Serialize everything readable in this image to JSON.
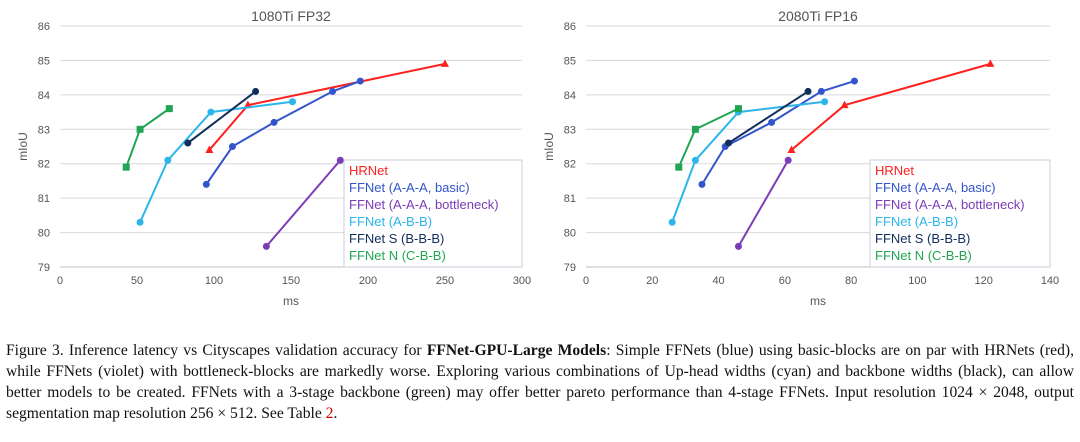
{
  "chart_data": [
    {
      "type": "line",
      "title": "1080Ti FP32",
      "xlabel": "ms",
      "ylabel": "mIoU",
      "xlim": [
        0,
        300
      ],
      "ylim": [
        79,
        86
      ],
      "xticks": [
        0,
        50,
        100,
        150,
        200,
        250,
        300
      ],
      "yticks": [
        79,
        80,
        81,
        82,
        83,
        84,
        85,
        86
      ],
      "grid": true,
      "legend_position": "bottom-right",
      "series": [
        {
          "name": "HRNet",
          "color": "#ff2020",
          "marker": "triangle",
          "x": [
            97,
            122,
            250
          ],
          "y": [
            82.4,
            83.7,
            84.9
          ]
        },
        {
          "name": "FFNet (A-A-A, basic)",
          "color": "#3355cc",
          "marker": "circle",
          "x": [
            95,
            112,
            139,
            177,
            195
          ],
          "y": [
            81.4,
            82.5,
            83.2,
            84.1,
            84.4
          ]
        },
        {
          "name": "FFNet (A-A-A, bottleneck)",
          "color": "#7a3cb8",
          "marker": "circle",
          "x": [
            134,
            182
          ],
          "y": [
            79.6,
            82.1
          ]
        },
        {
          "name": "FFNet (A-B-B)",
          "color": "#2cb5ea",
          "marker": "circle",
          "x": [
            52,
            70,
            98,
            151
          ],
          "y": [
            80.3,
            82.1,
            83.5,
            83.8
          ]
        },
        {
          "name": "FFNet S (B-B-B)",
          "color": "#102e5c",
          "marker": "circle",
          "x": [
            83,
            127
          ],
          "y": [
            82.6,
            84.1
          ]
        },
        {
          "name": "FFNet N (C-B-B)",
          "color": "#21a552",
          "marker": "square",
          "x": [
            43,
            52,
            71
          ],
          "y": [
            81.9,
            83.0,
            83.6
          ]
        }
      ]
    },
    {
      "type": "line",
      "title": "2080Ti FP16",
      "xlabel": "ms",
      "ylabel": "mIoU",
      "xlim": [
        0,
        140
      ],
      "ylim": [
        79,
        86
      ],
      "xticks": [
        0,
        20,
        40,
        60,
        80,
        100,
        120,
        140
      ],
      "yticks": [
        79,
        80,
        81,
        82,
        83,
        84,
        85,
        86
      ],
      "grid": true,
      "legend_position": "bottom-right",
      "series": [
        {
          "name": "HRNet",
          "color": "#ff2020",
          "marker": "triangle",
          "x": [
            62,
            78,
            122
          ],
          "y": [
            82.4,
            83.7,
            84.9
          ]
        },
        {
          "name": "FFNet (A-A-A, basic)",
          "color": "#3355cc",
          "marker": "circle",
          "x": [
            35,
            42,
            56,
            71,
            81
          ],
          "y": [
            81.4,
            82.5,
            83.2,
            84.1,
            84.4
          ]
        },
        {
          "name": "FFNet (A-A-A, bottleneck)",
          "color": "#7a3cb8",
          "marker": "circle",
          "x": [
            46,
            61
          ],
          "y": [
            79.6,
            82.1
          ]
        },
        {
          "name": "FFNet (A-B-B)",
          "color": "#2cb5ea",
          "marker": "circle",
          "x": [
            26,
            33,
            46,
            72
          ],
          "y": [
            80.3,
            82.1,
            83.5,
            83.8
          ]
        },
        {
          "name": "FFNet S (B-B-B)",
          "color": "#102e5c",
          "marker": "circle",
          "x": [
            43,
            67
          ],
          "y": [
            82.6,
            84.1
          ]
        },
        {
          "name": "FFNet N (C-B-B)",
          "color": "#21a552",
          "marker": "square",
          "x": [
            28,
            33,
            46
          ],
          "y": [
            81.9,
            83.0,
            83.6
          ]
        }
      ]
    }
  ],
  "caption": {
    "label": "Figure 3.",
    "lead": "Inference latency vs Cityscapes validation accuracy for",
    "bold": "FFNet-GPU-Large Models",
    "body": ": Simple FFNets (blue) using basic-blocks are on par with HRNets (red), while FFNets (violet) with bottleneck-blocks are markedly worse. Exploring various combinations of Up-head widths (cyan) and backbone widths (black), can allow better models to be created. FFNets with a 3-stage backbone (green) may offer better pareto performance than 4-stage FFNets. Input resolution 1024 × 2048, output segmentation map resolution 256 × 512. See Table",
    "ref": "2",
    "end": "."
  }
}
